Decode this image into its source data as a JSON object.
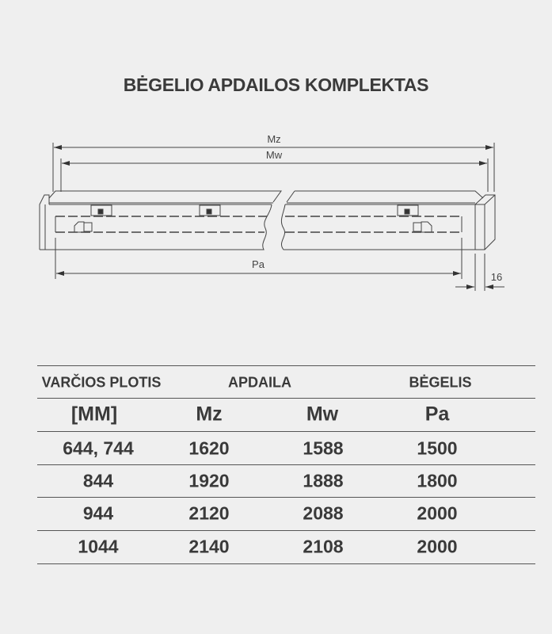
{
  "title": "BĖGELIO APDAILOS KOMPLEKTAS",
  "diagram": {
    "labels": {
      "mz": "Mz",
      "mw": "Mw",
      "pa": "Pa",
      "thickness": "16"
    }
  },
  "table": {
    "header_row1": [
      "VARČIOS PLOTIS",
      "APDAILA",
      "BĖGELIS"
    ],
    "header_row2": [
      "[MM]",
      "Mz",
      "Mw",
      "Pa"
    ],
    "rows": [
      [
        "644, 744",
        "1620",
        "1588",
        "1500"
      ],
      [
        "844",
        "1920",
        "1888",
        "1800"
      ],
      [
        "944",
        "2120",
        "2088",
        "2000"
      ],
      [
        "1044",
        "2140",
        "2108",
        "2000"
      ]
    ]
  }
}
